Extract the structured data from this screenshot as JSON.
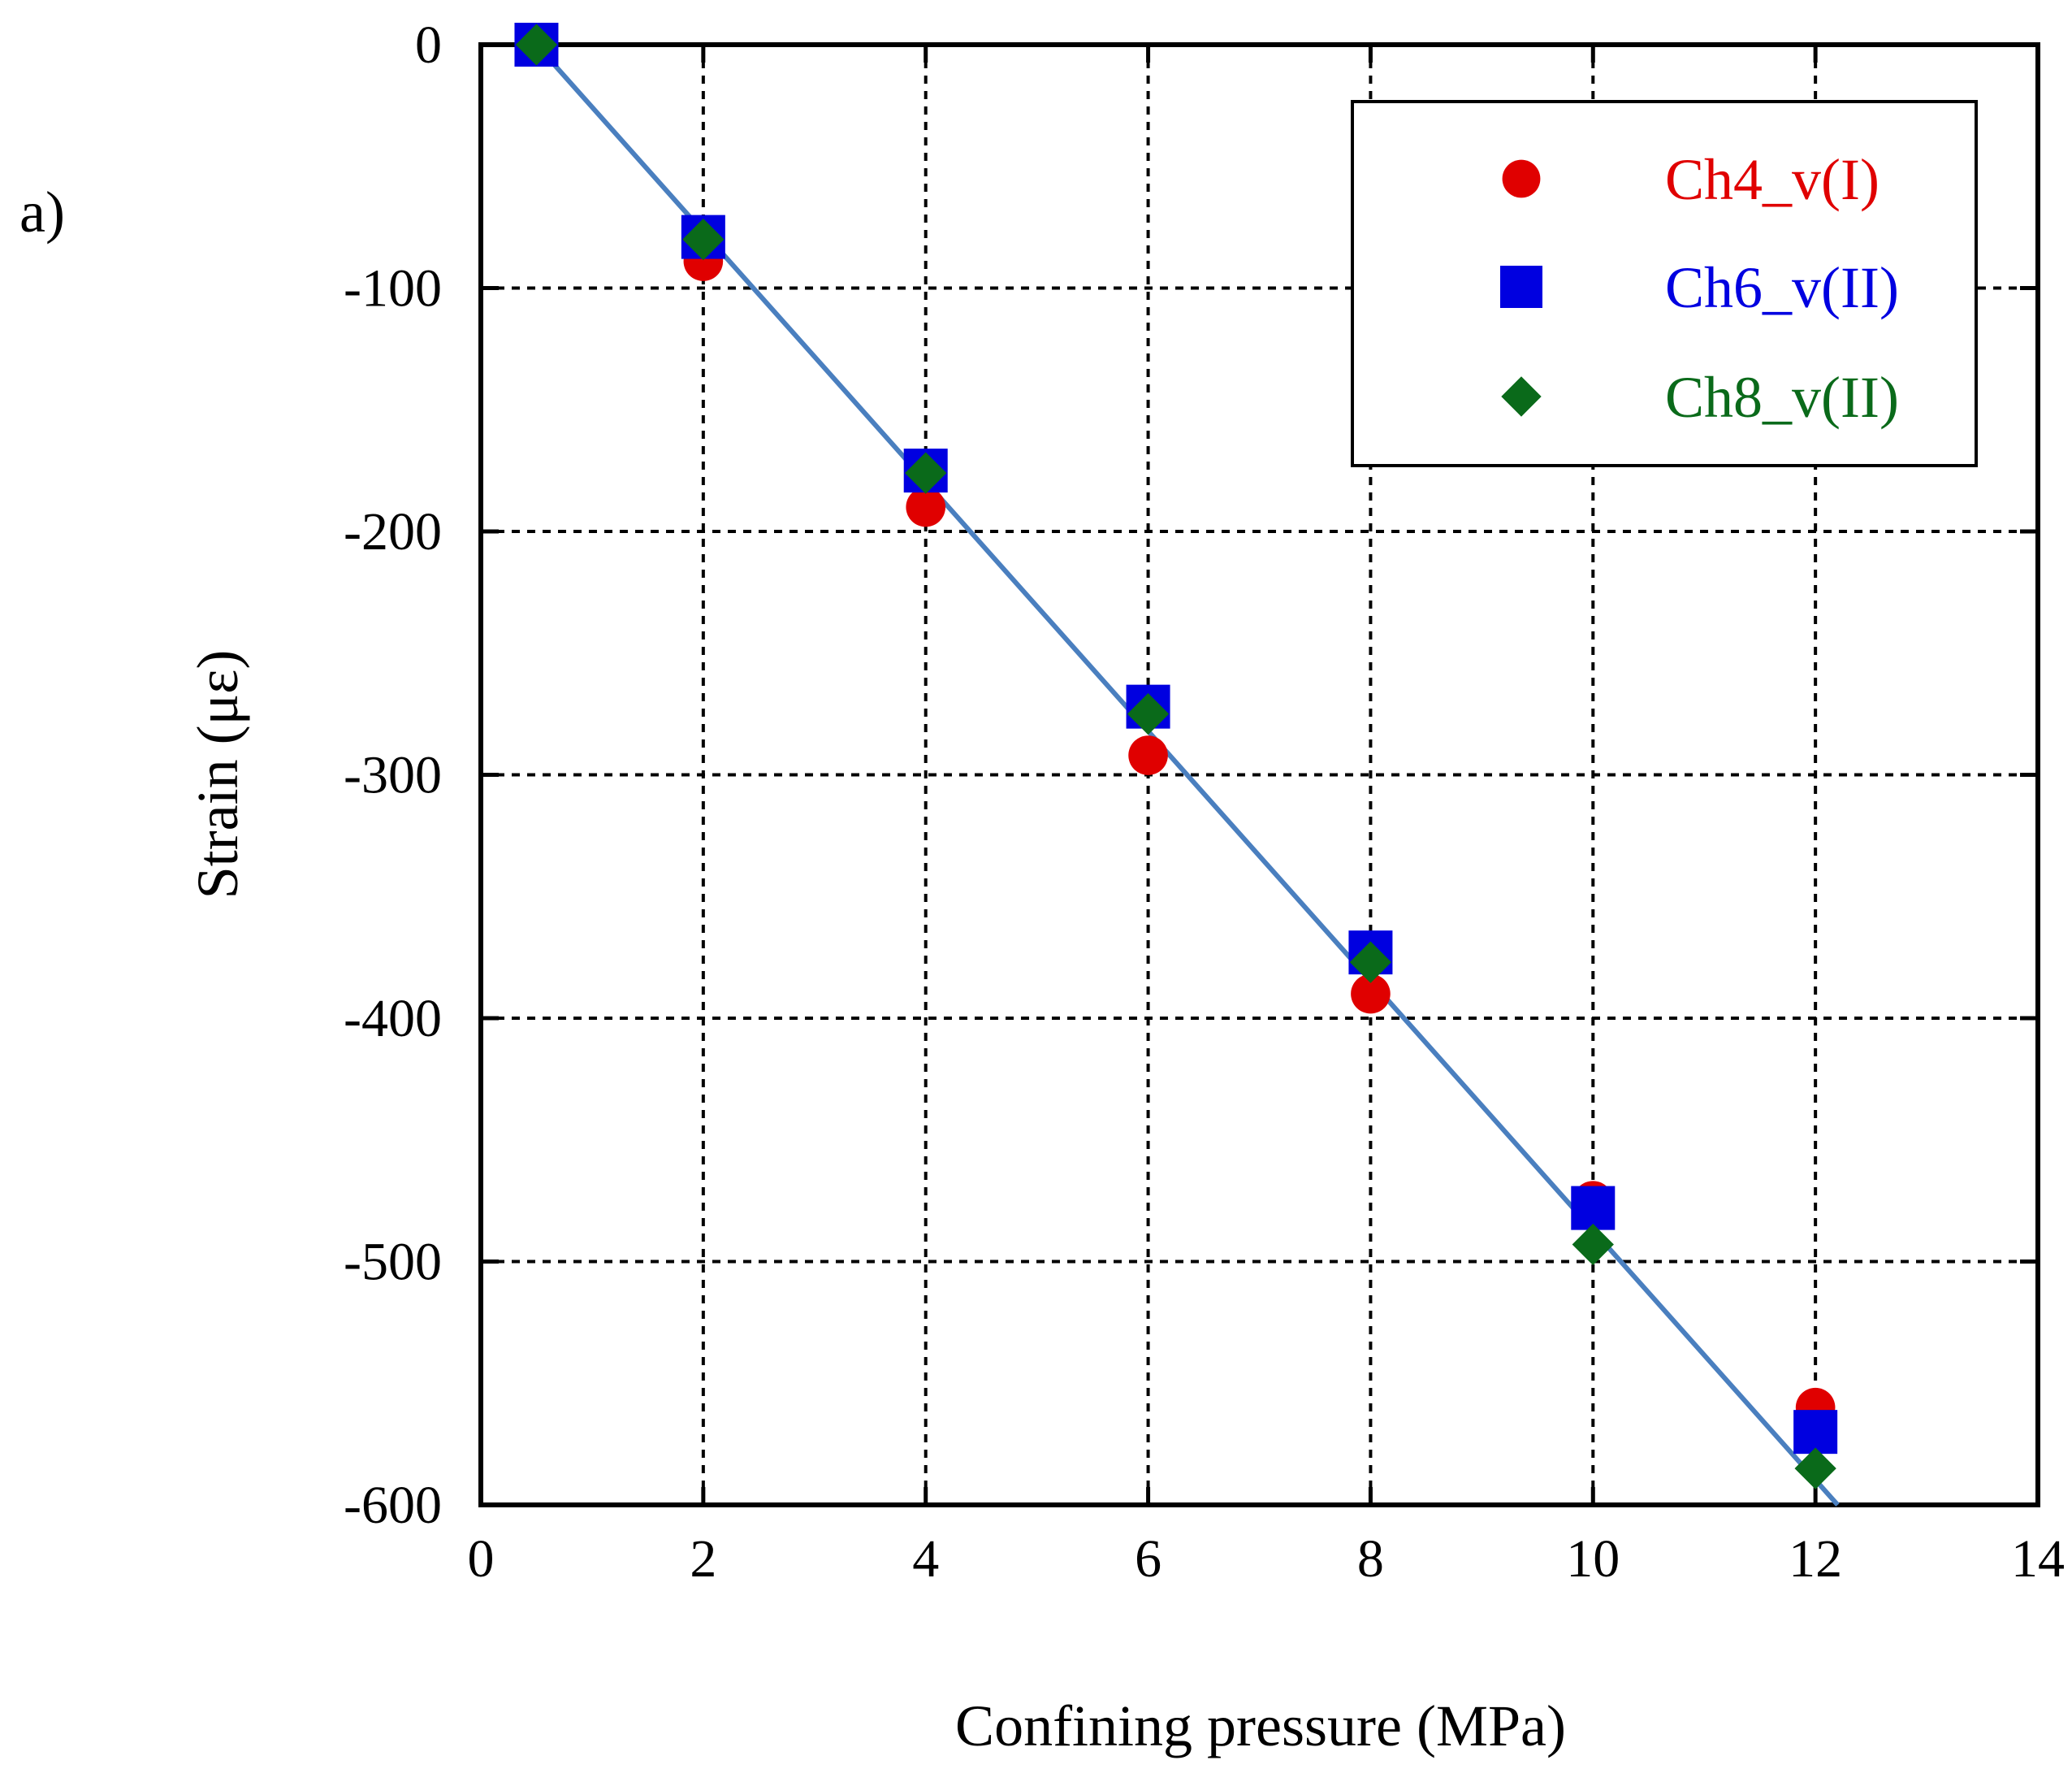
{
  "panel_label": "a)",
  "chart_data": {
    "type": "scatter",
    "title": "",
    "xlabel": "Confining pressure (MPa)",
    "ylabel": "Strain (με)",
    "xlim": [
      0,
      14
    ],
    "ylim": [
      -600,
      0
    ],
    "xticks": [
      0,
      2,
      4,
      6,
      8,
      10,
      12,
      14
    ],
    "yticks": [
      0,
      -100,
      -200,
      -300,
      -400,
      -500,
      -600
    ],
    "xtick_labels": [
      "0",
      "2",
      "4",
      "6",
      "8",
      "10",
      "12",
      "14"
    ],
    "ytick_labels": [
      "0",
      "-100",
      "-200",
      "-300",
      "-400",
      "-500",
      "-600"
    ],
    "grid": true,
    "legend_position": "top-right",
    "series": [
      {
        "name": "Ch4_v(I)",
        "marker": "circle",
        "color": "#e00000",
        "x": [
          0.5,
          2,
          4,
          6,
          8,
          10,
          12
        ],
        "y": [
          0,
          -89,
          -190,
          -292,
          -390,
          -475,
          -560
        ]
      },
      {
        "name": "Ch6_v(II)",
        "marker": "square",
        "color": "#0000e0",
        "x": [
          0.5,
          2,
          4,
          6,
          8,
          10,
          12
        ],
        "y": [
          0,
          -79,
          -175,
          -272,
          -373,
          -478,
          -570
        ]
      },
      {
        "name": "Ch8_v(II)",
        "marker": "diamond",
        "color": "#0a6a1a",
        "x": [
          0.5,
          2,
          4,
          6,
          8,
          10,
          12
        ],
        "y": [
          0,
          -80,
          -176,
          -275,
          -377,
          -493,
          -585
        ]
      }
    ],
    "fit_line": {
      "color": "#4a7fbf",
      "x": [
        0.5,
        12.2
      ],
      "y": [
        0,
        -600
      ]
    }
  }
}
